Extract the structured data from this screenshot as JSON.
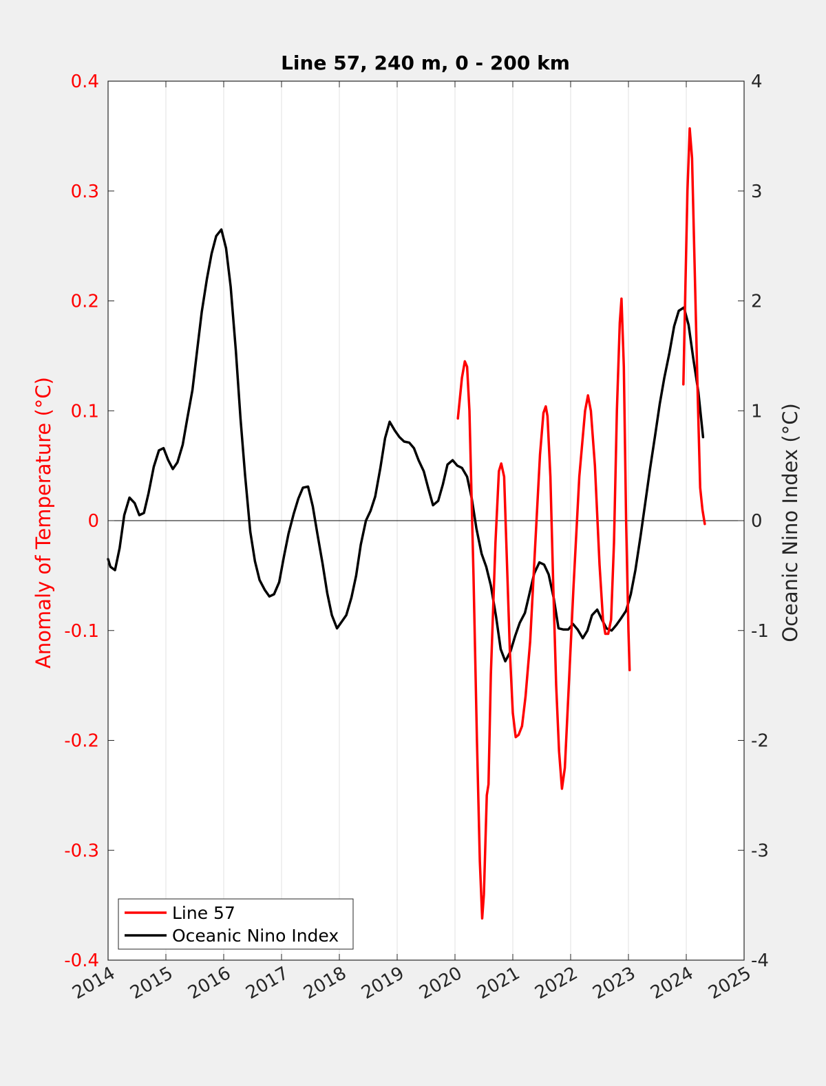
{
  "colors": {
    "background": "#f0f0f0",
    "plot_area": "#ffffff",
    "line57": "#ff0000",
    "oni": "#000000",
    "left_axis": "#ff0000",
    "right_axis": "#262626",
    "grid": "#e0e0e0"
  },
  "chart_data": {
    "type": "line",
    "title": "Line 57, 240 m, 0 - 200 km",
    "xlabel": "",
    "ylabel_left": "Anomaly of Temperature (°C)",
    "ylabel_right": "Oceanic Nino Index (°C)",
    "xlim": [
      2014,
      2025
    ],
    "ylim_left": [
      -0.4,
      0.4
    ],
    "ylim_right": [
      -4,
      4
    ],
    "x_ticks": [
      "2014",
      "2015",
      "2016",
      "2017",
      "2018",
      "2019",
      "2020",
      "2021",
      "2022",
      "2023",
      "2024",
      "2025"
    ],
    "y_ticks_left": [
      "-0.4",
      "-0.3",
      "-0.2",
      "-0.1",
      "0",
      "0.1",
      "0.2",
      "0.3",
      "0.4"
    ],
    "y_ticks_right": [
      "-4",
      "-3",
      "-2",
      "-1",
      "0",
      "1",
      "2",
      "3",
      "4"
    ],
    "grid": "vertical only",
    "zero_line": true,
    "legend": {
      "position": "bottom-left",
      "entries": [
        "Line 57",
        "Oceanic Nino Index"
      ]
    },
    "series": [
      {
        "name": "Line 57",
        "axis": "left",
        "segments": [
          [
            [
              2020.05,
              0.093
            ],
            [
              2020.12,
              0.13
            ],
            [
              2020.17,
              0.145
            ],
            [
              2020.21,
              0.14
            ],
            [
              2020.25,
              0.1
            ],
            [
              2020.32,
              -0.05
            ],
            [
              2020.38,
              -0.2
            ],
            [
              2020.43,
              -0.31
            ],
            [
              2020.47,
              -0.362
            ],
            [
              2020.5,
              -0.34
            ],
            [
              2020.55,
              -0.25
            ],
            [
              2020.58,
              -0.24
            ],
            [
              2020.62,
              -0.14
            ],
            [
              2020.7,
              -0.02
            ],
            [
              2020.76,
              0.045
            ],
            [
              2020.8,
              0.052
            ],
            [
              2020.85,
              0.04
            ],
            [
              2020.9,
              -0.04
            ],
            [
              2020.95,
              -0.12
            ],
            [
              2021.0,
              -0.175
            ],
            [
              2021.05,
              -0.197
            ],
            [
              2021.1,
              -0.195
            ],
            [
              2021.16,
              -0.187
            ],
            [
              2021.22,
              -0.16
            ],
            [
              2021.3,
              -0.11
            ],
            [
              2021.38,
              -0.03
            ],
            [
              2021.47,
              0.06
            ],
            [
              2021.53,
              0.098
            ],
            [
              2021.57,
              0.104
            ],
            [
              2021.6,
              0.095
            ],
            [
              2021.65,
              0.04
            ],
            [
              2021.7,
              -0.06
            ],
            [
              2021.75,
              -0.15
            ],
            [
              2021.8,
              -0.21
            ],
            [
              2021.85,
              -0.244
            ],
            [
              2021.9,
              -0.225
            ],
            [
              2021.96,
              -0.16
            ],
            [
              2022.05,
              -0.06
            ],
            [
              2022.15,
              0.04
            ],
            [
              2022.25,
              0.1
            ],
            [
              2022.3,
              0.114
            ],
            [
              2022.35,
              0.1
            ],
            [
              2022.42,
              0.05
            ],
            [
              2022.5,
              -0.04
            ],
            [
              2022.56,
              -0.09
            ],
            [
              2022.6,
              -0.103
            ],
            [
              2022.65,
              -0.103
            ],
            [
              2022.7,
              -0.09
            ],
            [
              2022.75,
              -0.02
            ],
            [
              2022.8,
              0.1
            ],
            [
              2022.85,
              0.18
            ],
            [
              2022.88,
              0.202
            ],
            [
              2022.92,
              0.14
            ],
            [
              2022.96,
              0.0
            ],
            [
              2023.0,
              -0.1
            ],
            [
              2023.02,
              -0.136
            ]
          ],
          [
            [
              2023.95,
              0.124
            ],
            [
              2023.98,
              0.2
            ],
            [
              2024.02,
              0.3
            ],
            [
              2024.06,
              0.357
            ],
            [
              2024.1,
              0.33
            ],
            [
              2024.15,
              0.22
            ],
            [
              2024.2,
              0.11
            ],
            [
              2024.24,
              0.03
            ],
            [
              2024.28,
              0.01
            ],
            [
              2024.32,
              -0.003
            ]
          ]
        ]
      },
      {
        "name": "Oceanic Nino Index",
        "axis": "right",
        "points": [
          [
            2014.0,
            -0.35
          ],
          [
            2014.04,
            -0.42
          ],
          [
            2014.12,
            -0.45
          ],
          [
            2014.2,
            -0.25
          ],
          [
            2014.28,
            0.05
          ],
          [
            2014.37,
            0.21
          ],
          [
            2014.46,
            0.16
          ],
          [
            2014.54,
            0.05
          ],
          [
            2014.62,
            0.07
          ],
          [
            2014.7,
            0.25
          ],
          [
            2014.79,
            0.49
          ],
          [
            2014.88,
            0.64
          ],
          [
            2014.96,
            0.66
          ],
          [
            2015.04,
            0.55
          ],
          [
            2015.12,
            0.47
          ],
          [
            2015.2,
            0.53
          ],
          [
            2015.29,
            0.69
          ],
          [
            2015.37,
            0.93
          ],
          [
            2015.46,
            1.19
          ],
          [
            2015.54,
            1.55
          ],
          [
            2015.62,
            1.9
          ],
          [
            2015.71,
            2.2
          ],
          [
            2015.79,
            2.43
          ],
          [
            2015.87,
            2.59
          ],
          [
            2015.96,
            2.65
          ],
          [
            2016.04,
            2.48
          ],
          [
            2016.12,
            2.13
          ],
          [
            2016.21,
            1.55
          ],
          [
            2016.29,
            0.93
          ],
          [
            2016.37,
            0.41
          ],
          [
            2016.46,
            -0.1
          ],
          [
            2016.54,
            -0.37
          ],
          [
            2016.62,
            -0.54
          ],
          [
            2016.71,
            -0.63
          ],
          [
            2016.79,
            -0.69
          ],
          [
            2016.87,
            -0.67
          ],
          [
            2016.96,
            -0.56
          ],
          [
            2017.04,
            -0.33
          ],
          [
            2017.12,
            -0.12
          ],
          [
            2017.21,
            0.06
          ],
          [
            2017.29,
            0.2
          ],
          [
            2017.37,
            0.3
          ],
          [
            2017.46,
            0.31
          ],
          [
            2017.54,
            0.13
          ],
          [
            2017.62,
            -0.12
          ],
          [
            2017.71,
            -0.39
          ],
          [
            2017.79,
            -0.66
          ],
          [
            2017.87,
            -0.86
          ],
          [
            2017.96,
            -0.98
          ],
          [
            2018.04,
            -0.92
          ],
          [
            2018.12,
            -0.86
          ],
          [
            2018.21,
            -0.7
          ],
          [
            2018.29,
            -0.5
          ],
          [
            2018.37,
            -0.22
          ],
          [
            2018.46,
            0.0
          ],
          [
            2018.54,
            0.09
          ],
          [
            2018.62,
            0.22
          ],
          [
            2018.71,
            0.48
          ],
          [
            2018.79,
            0.75
          ],
          [
            2018.87,
            0.9
          ],
          [
            2018.96,
            0.82
          ],
          [
            2019.04,
            0.76
          ],
          [
            2019.12,
            0.72
          ],
          [
            2019.21,
            0.71
          ],
          [
            2019.29,
            0.66
          ],
          [
            2019.37,
            0.55
          ],
          [
            2019.46,
            0.45
          ],
          [
            2019.54,
            0.29
          ],
          [
            2019.62,
            0.14
          ],
          [
            2019.71,
            0.18
          ],
          [
            2019.79,
            0.33
          ],
          [
            2019.87,
            0.51
          ],
          [
            2019.96,
            0.55
          ],
          [
            2020.04,
            0.5
          ],
          [
            2020.12,
            0.48
          ],
          [
            2020.21,
            0.4
          ],
          [
            2020.29,
            0.2
          ],
          [
            2020.37,
            -0.07
          ],
          [
            2020.46,
            -0.3
          ],
          [
            2020.54,
            -0.42
          ],
          [
            2020.62,
            -0.59
          ],
          [
            2020.71,
            -0.87
          ],
          [
            2020.79,
            -1.17
          ],
          [
            2020.87,
            -1.28
          ],
          [
            2020.96,
            -1.19
          ],
          [
            2021.04,
            -1.05
          ],
          [
            2021.12,
            -0.93
          ],
          [
            2021.21,
            -0.84
          ],
          [
            2021.29,
            -0.66
          ],
          [
            2021.37,
            -0.48
          ],
          [
            2021.46,
            -0.38
          ],
          [
            2021.54,
            -0.4
          ],
          [
            2021.62,
            -0.49
          ],
          [
            2021.71,
            -0.71
          ],
          [
            2021.79,
            -0.98
          ],
          [
            2021.87,
            -0.99
          ],
          [
            2021.96,
            -0.99
          ],
          [
            2022.04,
            -0.94
          ],
          [
            2022.12,
            -0.99
          ],
          [
            2022.21,
            -1.07
          ],
          [
            2022.29,
            -1.0
          ],
          [
            2022.37,
            -0.86
          ],
          [
            2022.46,
            -0.81
          ],
          [
            2022.54,
            -0.9
          ],
          [
            2022.62,
            -0.98
          ],
          [
            2022.71,
            -1.0
          ],
          [
            2022.79,
            -0.95
          ],
          [
            2022.87,
            -0.89
          ],
          [
            2022.96,
            -0.82
          ],
          [
            2023.04,
            -0.67
          ],
          [
            2023.12,
            -0.45
          ],
          [
            2023.21,
            -0.14
          ],
          [
            2023.29,
            0.16
          ],
          [
            2023.37,
            0.46
          ],
          [
            2023.46,
            0.77
          ],
          [
            2023.54,
            1.06
          ],
          [
            2023.62,
            1.3
          ],
          [
            2023.71,
            1.53
          ],
          [
            2023.79,
            1.77
          ],
          [
            2023.87,
            1.91
          ],
          [
            2023.96,
            1.94
          ],
          [
            2024.04,
            1.78
          ],
          [
            2024.12,
            1.48
          ],
          [
            2024.21,
            1.17
          ],
          [
            2024.29,
            0.76
          ]
        ]
      }
    ]
  }
}
